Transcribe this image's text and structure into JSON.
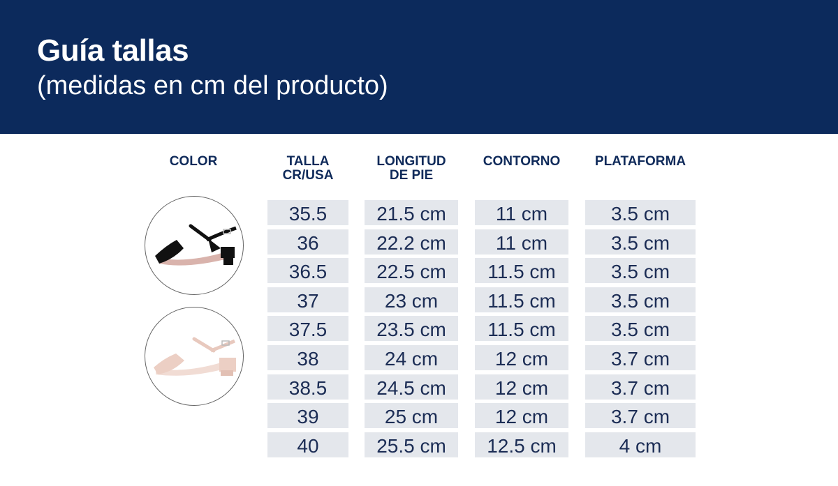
{
  "header": {
    "title": "Guía tallas",
    "subtitle": "(medidas en cm del producto)"
  },
  "columns": [
    "COLOR",
    "TALLA CR/USA",
    "LONGITUD DE PIE",
    "CONTORNO",
    "PLATAFORMA"
  ],
  "colors": [
    {
      "name": "black-sandal",
      "hex": "#111111"
    },
    {
      "name": "nude-sandal",
      "hex": "#eccfc4"
    }
  ],
  "rows": [
    [
      "35.5",
      "21.5 cm",
      "11 cm",
      "3.5 cm"
    ],
    [
      "36",
      "22.2 cm",
      "11 cm",
      "3.5 cm"
    ],
    [
      "36.5",
      "22.5 cm",
      "11.5 cm",
      "3.5 cm"
    ],
    [
      "37",
      "23 cm",
      "11.5 cm",
      "3.5 cm"
    ],
    [
      "37.5",
      "23.5 cm",
      "11.5 cm",
      "3.5 cm"
    ],
    [
      "38",
      "24 cm",
      "12 cm",
      "3.7 cm"
    ],
    [
      "38.5",
      "24.5 cm",
      "12 cm",
      "3.7 cm"
    ],
    [
      "39",
      "25 cm",
      "12 cm",
      "3.7 cm"
    ],
    [
      "40",
      "25.5 cm",
      "12.5 cm",
      "4 cm"
    ]
  ],
  "theme": {
    "header_bg": "#0c2a5c",
    "cell_bg": "#e4e7ec",
    "text": "#1c2d55"
  }
}
